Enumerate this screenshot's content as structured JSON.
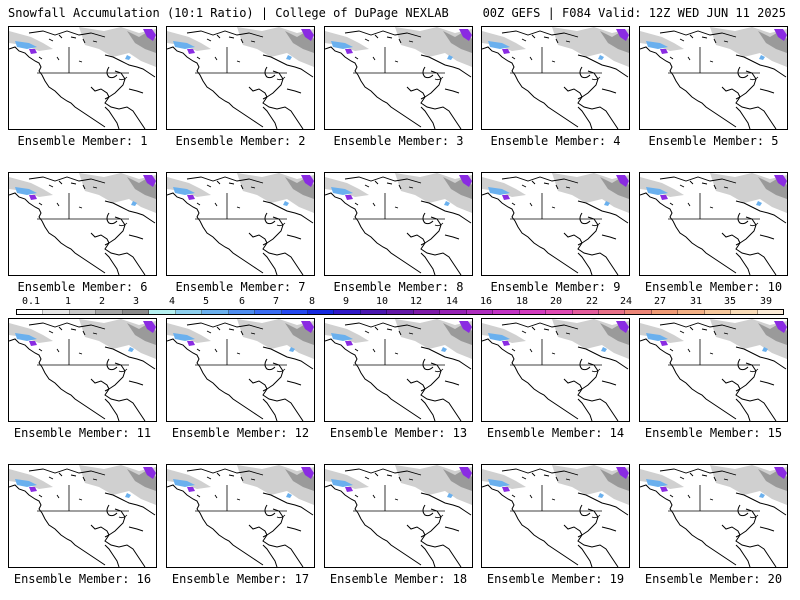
{
  "header": {
    "left": "Snowfall Accumulation (10:1 Ratio) | College of DuPage NEXLAB",
    "right": "00Z GEFS | F084 Valid: 12Z WED JUN 11 2025"
  },
  "members": [
    "Ensemble Member: 1",
    "Ensemble Member: 2",
    "Ensemble Member: 3",
    "Ensemble Member: 4",
    "Ensemble Member: 5",
    "Ensemble Member: 6",
    "Ensemble Member: 7",
    "Ensemble Member: 8",
    "Ensemble Member: 9",
    "Ensemble Member: 10",
    "Ensemble Member: 11",
    "Ensemble Member: 12",
    "Ensemble Member: 13",
    "Ensemble Member: 14",
    "Ensemble Member: 15",
    "Ensemble Member: 16",
    "Ensemble Member: 17",
    "Ensemble Member: 18",
    "Ensemble Member: 19",
    "Ensemble Member: 20"
  ],
  "scale": {
    "ticks": [
      "0.1",
      "1",
      "2",
      "3",
      "4",
      "5",
      "6",
      "7",
      "8",
      "9",
      "10",
      "12",
      "14",
      "16",
      "18",
      "20",
      "22",
      "24",
      "27",
      "31",
      "35",
      "39"
    ],
    "colors": [
      "#ffffff",
      "#e6e6e6",
      "#c8c8c8",
      "#a6a6a6",
      "#8a8a8a",
      "#b4f0f0",
      "#8ccfee",
      "#6ab0ee",
      "#4e8df0",
      "#3a6cf2",
      "#2448f0",
      "#1428e0",
      "#3018c8",
      "#4a16b0",
      "#6418a8",
      "#7e1aa8",
      "#9622b4",
      "#ae2cbe",
      "#c232c4",
      "#d43cc0",
      "#e04ab4",
      "#e45c9c",
      "#e87088",
      "#ec8476",
      "#f09a74",
      "#f4b084",
      "#f8c89c",
      "#fadcb8",
      "#fcecd8"
    ]
  },
  "map_colors": {
    "coast": "#000000",
    "snow_light": "#d0d0d0",
    "snow_mid": "#9a9a9a",
    "snow_blue": "#6ab0ee",
    "snow_purple": "#8a2be2"
  }
}
